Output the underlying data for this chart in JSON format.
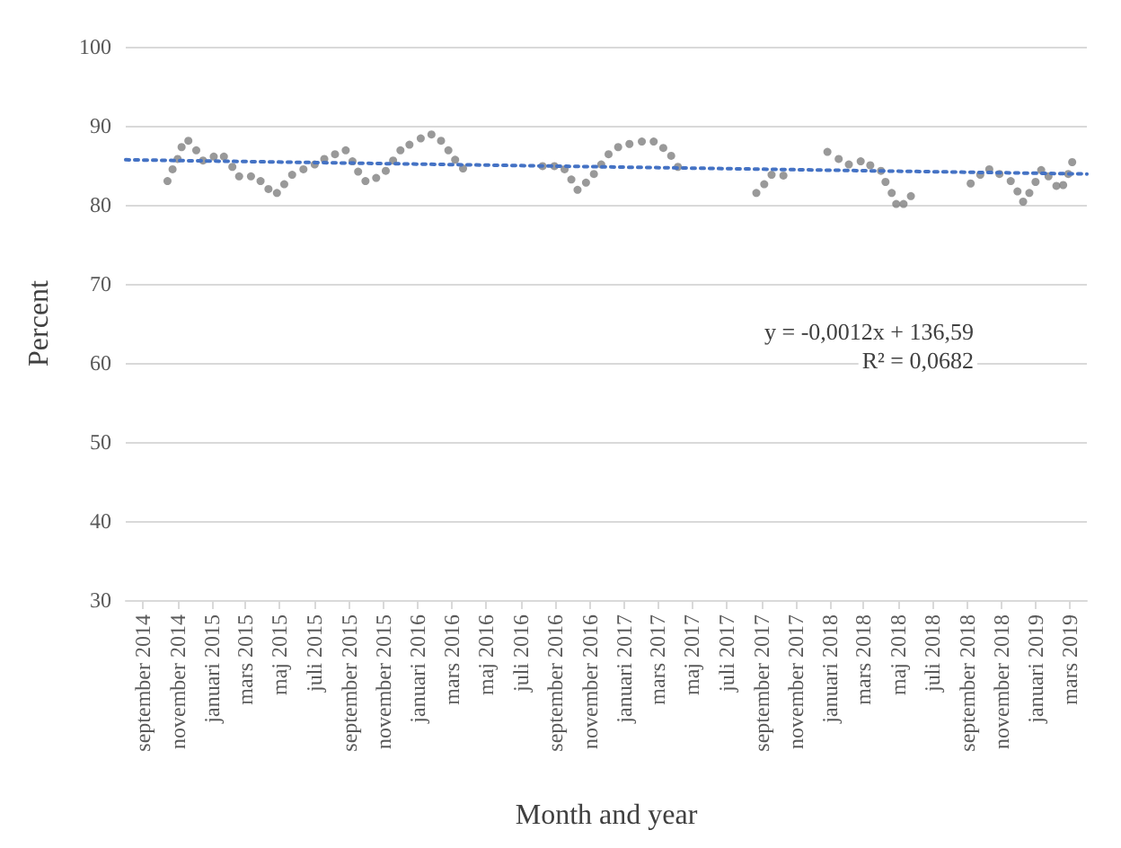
{
  "chart_data": {
    "type": "scatter",
    "xlabel": "Month and year",
    "ylabel": "Percent",
    "xlim": [
      "2014-08-01",
      "2019-04-01"
    ],
    "xticks": [
      {
        "value": "2014-09-01",
        "label": "september 2014"
      },
      {
        "value": "2014-11-01",
        "label": "november 2014"
      },
      {
        "value": "2015-01-01",
        "label": "januari 2015"
      },
      {
        "value": "2015-03-01",
        "label": "mars 2015"
      },
      {
        "value": "2015-05-01",
        "label": "maj 2015"
      },
      {
        "value": "2015-07-01",
        "label": "juli 2015"
      },
      {
        "value": "2015-09-01",
        "label": "september 2015"
      },
      {
        "value": "2015-11-01",
        "label": "november 2015"
      },
      {
        "value": "2016-01-01",
        "label": "januari 2016"
      },
      {
        "value": "2016-03-01",
        "label": "mars 2016"
      },
      {
        "value": "2016-05-01",
        "label": "maj 2016"
      },
      {
        "value": "2016-07-01",
        "label": "juli 2016"
      },
      {
        "value": "2016-09-01",
        "label": "september 2016"
      },
      {
        "value": "2016-11-01",
        "label": "november 2016"
      },
      {
        "value": "2017-01-01",
        "label": "januari 2017"
      },
      {
        "value": "2017-03-01",
        "label": "mars 2017"
      },
      {
        "value": "2017-05-01",
        "label": "maj 2017"
      },
      {
        "value": "2017-07-01",
        "label": "juli 2017"
      },
      {
        "value": "2017-09-01",
        "label": "september 2017"
      },
      {
        "value": "2017-11-01",
        "label": "november 2017"
      },
      {
        "value": "2018-01-01",
        "label": "januari 2018"
      },
      {
        "value": "2018-03-01",
        "label": "mars 2018"
      },
      {
        "value": "2018-05-01",
        "label": "maj 2018"
      },
      {
        "value": "2018-07-01",
        "label": "juli 2018"
      },
      {
        "value": "2018-09-01",
        "label": "september 2018"
      },
      {
        "value": "2018-11-01",
        "label": "november 2018"
      },
      {
        "value": "2019-01-01",
        "label": "januari 2019"
      },
      {
        "value": "2019-03-01",
        "label": "mars 2019"
      }
    ],
    "ylim": [
      30,
      100
    ],
    "yticks": [
      30,
      40,
      50,
      60,
      70,
      80,
      90,
      100
    ],
    "grid": "y",
    "legend": false,
    "series": [
      {
        "type": "scatter",
        "color": "#7f7f7f",
        "marker": "circle",
        "x": [
          "2014-10-14",
          "2014-10-23",
          "2014-11-01",
          "2014-11-08",
          "2014-11-20",
          "2014-12-04",
          "2014-12-16",
          "2015-01-04",
          "2015-01-22",
          "2015-02-06",
          "2015-02-18",
          "2015-03-11",
          "2015-03-28",
          "2015-04-11",
          "2015-04-26",
          "2015-05-09",
          "2015-05-23",
          "2015-06-12",
          "2015-07-02",
          "2015-07-19",
          "2015-08-07",
          "2015-08-26",
          "2015-09-07",
          "2015-09-17",
          "2015-09-30",
          "2015-10-19",
          "2015-11-05",
          "2015-11-18",
          "2015-12-01",
          "2015-12-17",
          "2016-01-06",
          "2016-01-25",
          "2016-02-11",
          "2016-02-24",
          "2016-03-07",
          "2016-03-21",
          "2016-08-09",
          "2016-08-30",
          "2016-09-17",
          "2016-09-29",
          "2016-10-10",
          "2016-10-25",
          "2016-11-08",
          "2016-11-21",
          "2016-12-04",
          "2016-12-21",
          "2017-01-10",
          "2017-02-01",
          "2017-02-22",
          "2017-03-11",
          "2017-03-25",
          "2017-04-06",
          "2017-08-23",
          "2017-09-06",
          "2017-09-19",
          "2017-10-10",
          "2017-12-27",
          "2018-01-16",
          "2018-02-03",
          "2018-02-24",
          "2018-03-13",
          "2018-04-01",
          "2018-04-09",
          "2018-04-20",
          "2018-04-28",
          "2018-05-11",
          "2018-05-24",
          "2018-09-07",
          "2018-09-24",
          "2018-10-10",
          "2018-10-28",
          "2018-11-17",
          "2018-11-29",
          "2018-12-09",
          "2018-12-20",
          "2018-12-31",
          "2019-01-10",
          "2019-01-23",
          "2019-02-06",
          "2019-02-18",
          "2019-02-27",
          "2019-03-06"
        ],
        "values": [
          83.0,
          84.5,
          85.8,
          87.3,
          88.1,
          86.9,
          85.6,
          86.1,
          86.1,
          84.8,
          83.6,
          83.6,
          83.0,
          82.0,
          81.5,
          82.6,
          83.8,
          84.5,
          85.1,
          85.8,
          86.4,
          86.9,
          85.5,
          84.2,
          83.0,
          83.4,
          84.3,
          85.6,
          86.9,
          87.6,
          88.4,
          88.9,
          88.1,
          86.9,
          85.7,
          84.6,
          84.9,
          84.9,
          84.5,
          83.2,
          81.9,
          82.8,
          83.9,
          85.1,
          86.4,
          87.3,
          87.7,
          88.0,
          88.0,
          87.2,
          86.2,
          84.8,
          81.5,
          82.6,
          83.8,
          83.7,
          86.7,
          85.8,
          85.1,
          85.5,
          85.0,
          84.3,
          82.9,
          81.5,
          80.1,
          80.1,
          81.1,
          82.7,
          83.8,
          84.5,
          83.9,
          83.0,
          81.7,
          80.4,
          81.5,
          82.9,
          84.4,
          83.6,
          82.4,
          82.5,
          83.9,
          85.4
        ]
      },
      {
        "type": "line",
        "color": "#4472c4",
        "marker": "none",
        "line_style": "dotted",
        "x": [
          "2014-08-01",
          "2019-04-01"
        ],
        "values": [
          85.7,
          83.9
        ]
      }
    ],
    "annotations": [
      "y = -0,0012x + 136,59",
      "R² = 0,0682"
    ]
  }
}
